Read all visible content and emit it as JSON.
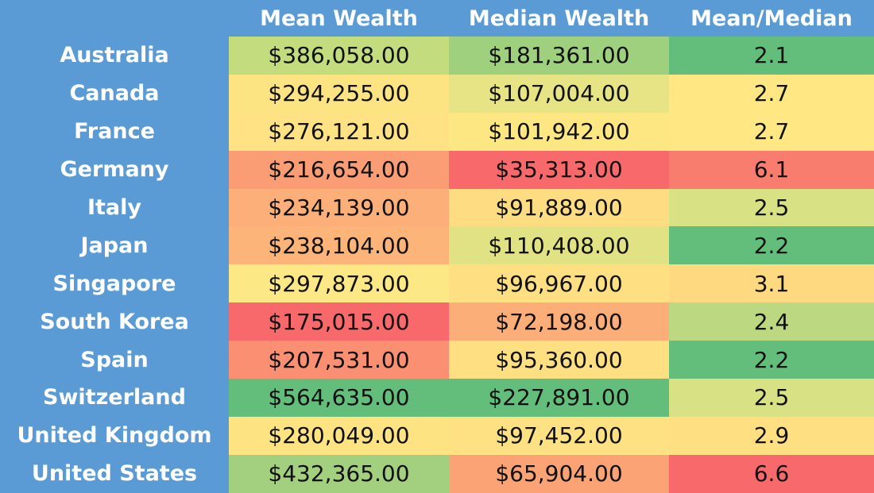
{
  "chart_data": {
    "type": "table",
    "columns": [
      "",
      "Mean Wealth",
      "Median Wealth",
      "Mean/Median"
    ],
    "rows": [
      {
        "country": "Australia",
        "mean": "$386,058.00",
        "median": "$181,361.00",
        "ratio": "2.1",
        "mean_color": "#c3dc7d",
        "median_color": "#9fd07e",
        "ratio_color": "#63be7b"
      },
      {
        "country": "Canada",
        "mean": "$294,255.00",
        "median": "$107,004.00",
        "ratio": "2.7",
        "mean_color": "#fde483",
        "median_color": "#e6e484",
        "ratio_color": "#ffe784"
      },
      {
        "country": "France",
        "mean": "$276,121.00",
        "median": "$101,942.00",
        "ratio": "2.7",
        "mean_color": "#fee283",
        "median_color": "#fde783",
        "ratio_color": "#ffe784"
      },
      {
        "country": "Germany",
        "mean": "$216,654.00",
        "median": "$35,313.00",
        "ratio": "6.1",
        "mean_color": "#fa9d74",
        "median_color": "#f8696b",
        "ratio_color": "#f97d6e"
      },
      {
        "country": "Italy",
        "mean": "$234,139.00",
        "median": "$91,889.00",
        "ratio": "2.5",
        "mean_color": "#fcaf78",
        "median_color": "#fedc81",
        "ratio_color": "#d8e183"
      },
      {
        "country": "Japan",
        "mean": "$238,104.00",
        "median": "$110,408.00",
        "ratio": "2.2",
        "mean_color": "#fcb479",
        "median_color": "#e0e283",
        "ratio_color": "#63be7b"
      },
      {
        "country": "Singapore",
        "mean": "$297,873.00",
        "median": "$96,967.00",
        "ratio": "3.1",
        "mean_color": "#fce985",
        "median_color": "#fee082",
        "ratio_color": "#fed980"
      },
      {
        "country": "South Korea",
        "mean": "$175,015.00",
        "median": "$72,198.00",
        "ratio": "2.4",
        "mean_color": "#f8696b",
        "median_color": "#fcae78",
        "ratio_color": "#bcd881"
      },
      {
        "country": "Spain",
        "mean": "$207,531.00",
        "median": "$95,360.00",
        "ratio": "2.2",
        "mean_color": "#fa8f72",
        "median_color": "#fedf81",
        "ratio_color": "#63be7b"
      },
      {
        "country": "Switzerland",
        "mean": "$564,635.00",
        "median": "$227,891.00",
        "ratio": "2.5",
        "mean_color": "#63be7b",
        "median_color": "#63be7b",
        "ratio_color": "#d8e183"
      },
      {
        "country": "United Kingdom",
        "mean": "$280,049.00",
        "median": "$97,452.00",
        "ratio": "2.9",
        "mean_color": "#fee383",
        "median_color": "#fee182",
        "ratio_color": "#fee082"
      },
      {
        "country": "United States",
        "mean": "$432,365.00",
        "median": "$65,904.00",
        "ratio": "6.6",
        "mean_color": "#a3d07f",
        "median_color": "#fba375",
        "ratio_color": "#f8696b"
      }
    ],
    "header_color": "#5b9bd5"
  }
}
